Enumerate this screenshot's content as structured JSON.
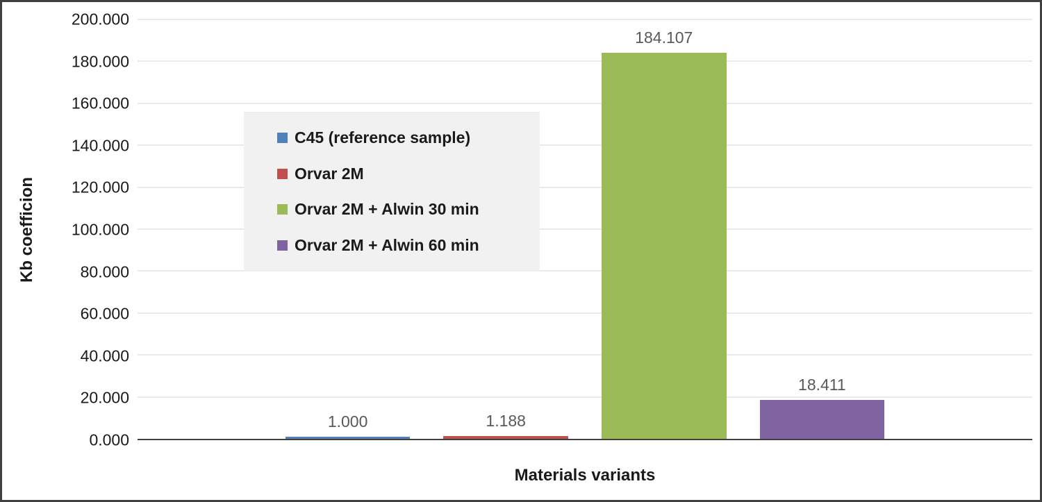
{
  "chart_data": {
    "type": "bar",
    "title": "",
    "xlabel": "Materials variants",
    "ylabel": "Kb coefficion",
    "ylim": [
      0,
      200
    ],
    "ytick_step": 20,
    "ytick_labels": [
      "0.000",
      "20.000",
      "40.000",
      "60.000",
      "80.000",
      "100.000",
      "120.000",
      "140.000",
      "160.000",
      "180.000",
      "200.000"
    ],
    "grid": true,
    "legend_position": "inside-upper-left",
    "legend_background": "#f1f1f1",
    "series": [
      {
        "key": "c45",
        "name": "C45 (reference sample)",
        "value": 1.0,
        "label": "1.000",
        "color": "#4f81bd"
      },
      {
        "key": "orvar-2m",
        "name": "Orvar 2M",
        "value": 1.188,
        "label": "1.188",
        "color": "#c0504d"
      },
      {
        "key": "orvar-2m-alwin-30",
        "name": "Orvar 2M + Alwin 30 min",
        "value": 184.107,
        "label": "184.107",
        "color": "#9bbb59"
      },
      {
        "key": "orvar-2m-alwin-60",
        "name": "Orvar 2M + Alwin 60 min",
        "value": 18.411,
        "label": "18.411",
        "color": "#8064a2"
      }
    ]
  }
}
